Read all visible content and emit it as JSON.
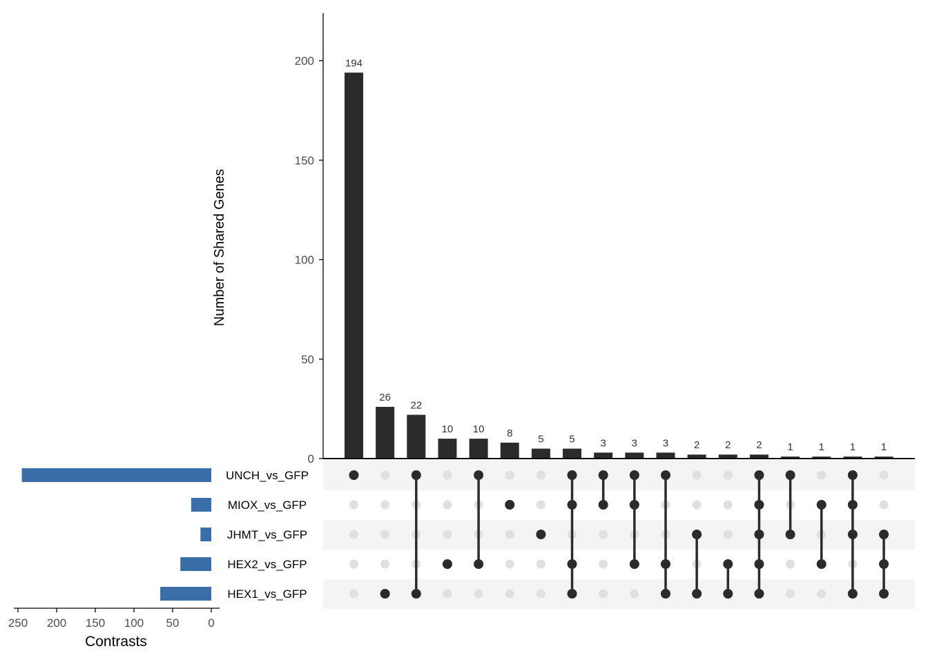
{
  "chart_data": {
    "type": "bar",
    "ylabel": "Number of Shared Genes",
    "ylim": [
      0,
      222
    ],
    "yticks": [
      0,
      50,
      100,
      150,
      200
    ],
    "values": [
      194,
      26,
      22,
      10,
      10,
      8,
      5,
      5,
      3,
      3,
      3,
      2,
      2,
      2,
      1,
      1,
      1,
      1
    ],
    "sets": [
      "UNCH_vs_GFP",
      "MIOX_vs_GFP",
      "JHMT_vs_GFP",
      "HEX2_vs_GFP",
      "HEX1_vs_GFP"
    ],
    "memberships": [
      [
        "UNCH_vs_GFP"
      ],
      [
        "HEX1_vs_GFP"
      ],
      [
        "UNCH_vs_GFP",
        "HEX1_vs_GFP"
      ],
      [
        "HEX2_vs_GFP"
      ],
      [
        "UNCH_vs_GFP",
        "HEX2_vs_GFP"
      ],
      [
        "MIOX_vs_GFP"
      ],
      [
        "JHMT_vs_GFP"
      ],
      [
        "UNCH_vs_GFP",
        "MIOX_vs_GFP",
        "HEX2_vs_GFP",
        "HEX1_vs_GFP"
      ],
      [
        "UNCH_vs_GFP",
        "MIOX_vs_GFP"
      ],
      [
        "UNCH_vs_GFP",
        "MIOX_vs_GFP",
        "HEX2_vs_GFP"
      ],
      [
        "UNCH_vs_GFP",
        "HEX2_vs_GFP",
        "HEX1_vs_GFP"
      ],
      [
        "JHMT_vs_GFP",
        "HEX1_vs_GFP"
      ],
      [
        "HEX2_vs_GFP",
        "HEX1_vs_GFP"
      ],
      [
        "UNCH_vs_GFP",
        "MIOX_vs_GFP",
        "JHMT_vs_GFP",
        "HEX2_vs_GFP",
        "HEX1_vs_GFP"
      ],
      [
        "UNCH_vs_GFP",
        "JHMT_vs_GFP"
      ],
      [
        "MIOX_vs_GFP",
        "HEX2_vs_GFP"
      ],
      [
        "UNCH_vs_GFP",
        "MIOX_vs_GFP",
        "JHMT_vs_GFP",
        "HEX1_vs_GFP"
      ],
      [
        "JHMT_vs_GFP",
        "HEX2_vs_GFP",
        "HEX1_vs_GFP"
      ]
    ],
    "set_sizes": {
      "xlabel": "Contrasts",
      "xlim": [
        0,
        270
      ],
      "xticks": [
        250,
        200,
        150,
        100,
        50,
        0
      ],
      "values": [
        245,
        26,
        14,
        40,
        66
      ]
    },
    "colors": {
      "bar": "#2b2b2b",
      "set_bar": "#3a6ea8",
      "dot_active": "#2b2b2b",
      "dot_inactive": "#e0e0e0",
      "stripe": "#f4f4f4"
    }
  }
}
